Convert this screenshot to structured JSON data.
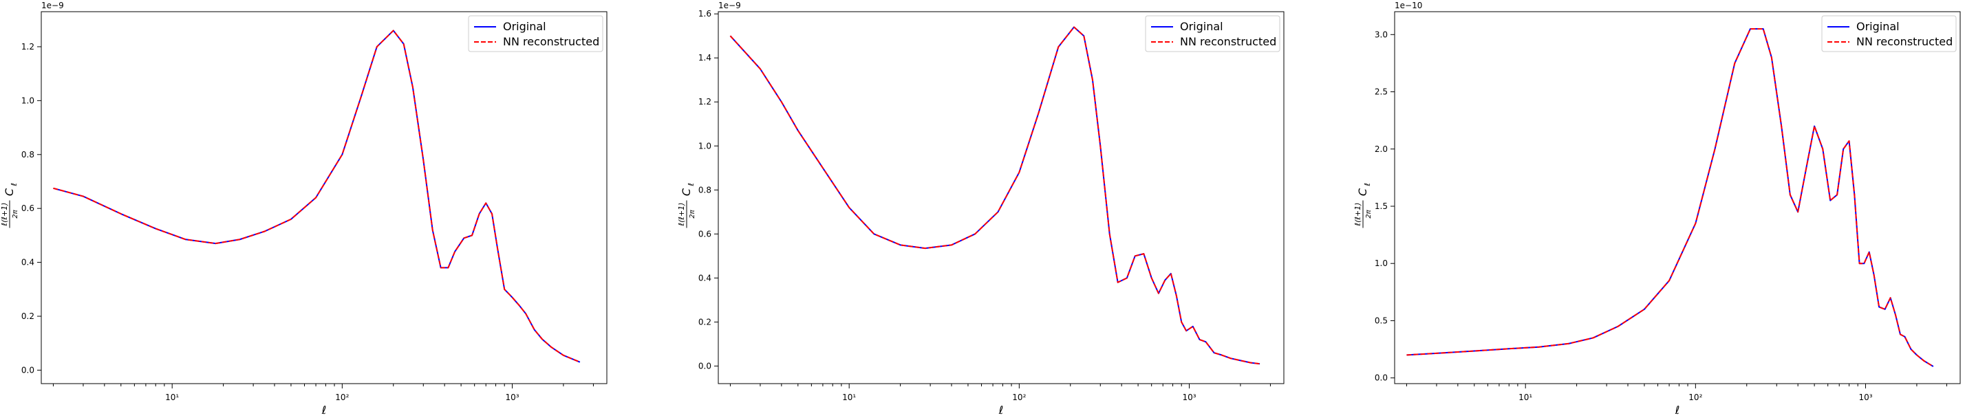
{
  "legend": {
    "original_label": "Original",
    "nn_label": "NN reconstructed"
  },
  "colors": {
    "original": "#0000ff",
    "nn": "#ff0000"
  },
  "axis_labels": {
    "xlabel": "ℓ",
    "ylabel_prefix": "ℓ(ℓ+1)",
    "ylabel_frac_den": "2π",
    "ylabel_suffix": "C",
    "ylabel_sub": "ℓ"
  },
  "chart_data": [
    {
      "type": "line",
      "xscale": "log",
      "xlim": [
        1.7,
        3600
      ],
      "ylim": [
        -0.05,
        1.33
      ],
      "offset_text": "1e−9",
      "xticks": [
        10,
        100,
        1000
      ],
      "xtick_labels": [
        "10¹",
        "10²",
        "10³"
      ],
      "yticks": [
        0.0,
        0.2,
        0.4,
        0.6,
        0.8,
        1.0,
        1.2
      ],
      "ytick_labels": [
        "0.0",
        "0.2",
        "0.4",
        "0.6",
        "0.8",
        "1.0",
        "1.2"
      ],
      "xlabel": "ℓ",
      "legend_position": "upper right",
      "series": [
        {
          "name": "Original",
          "style": "solid",
          "x": [
            2,
            3,
            5,
            8,
            12,
            18,
            25,
            35,
            50,
            70,
            100,
            130,
            160,
            200,
            230,
            260,
            300,
            340,
            380,
            420,
            460,
            520,
            580,
            640,
            700,
            760,
            820,
            900,
            1000,
            1100,
            1200,
            1350,
            1500,
            1700,
            2000,
            2500
          ],
          "y": [
            0.675,
            0.645,
            0.58,
            0.525,
            0.485,
            0.47,
            0.485,
            0.515,
            0.56,
            0.64,
            0.8,
            1.02,
            1.2,
            1.26,
            1.21,
            1.05,
            0.78,
            0.52,
            0.38,
            0.38,
            0.44,
            0.49,
            0.5,
            0.58,
            0.62,
            0.58,
            0.45,
            0.3,
            0.27,
            0.24,
            0.21,
            0.15,
            0.115,
            0.085,
            0.055,
            0.03
          ]
        },
        {
          "name": "NN reconstructed",
          "style": "dashed",
          "x": [
            2,
            3,
            5,
            8,
            12,
            18,
            25,
            35,
            50,
            70,
            100,
            130,
            160,
            200,
            230,
            260,
            300,
            340,
            380,
            420,
            460,
            520,
            580,
            640,
            700,
            760,
            820,
            900,
            1000,
            1100,
            1200,
            1350,
            1500,
            1700,
            2000,
            2500
          ],
          "y": [
            0.675,
            0.645,
            0.58,
            0.525,
            0.485,
            0.47,
            0.485,
            0.515,
            0.56,
            0.64,
            0.8,
            1.02,
            1.2,
            1.26,
            1.21,
            1.05,
            0.78,
            0.52,
            0.38,
            0.38,
            0.44,
            0.49,
            0.5,
            0.58,
            0.62,
            0.58,
            0.45,
            0.3,
            0.27,
            0.24,
            0.21,
            0.15,
            0.115,
            0.085,
            0.055,
            0.03
          ]
        }
      ]
    },
    {
      "type": "line",
      "xscale": "log",
      "xlim": [
        1.7,
        3600
      ],
      "ylim": [
        -0.08,
        1.61
      ],
      "offset_text": "1e−9",
      "xticks": [
        10,
        100,
        1000
      ],
      "xtick_labels": [
        "10¹",
        "10²",
        "10³"
      ],
      "yticks": [
        0.0,
        0.2,
        0.4,
        0.6,
        0.8,
        1.0,
        1.2,
        1.4,
        1.6
      ],
      "ytick_labels": [
        "0.0",
        "0.2",
        "0.4",
        "0.6",
        "0.8",
        "1.0",
        "1.2",
        "1.4",
        "1.6"
      ],
      "xlabel": "ℓ",
      "legend_position": "upper right",
      "series": [
        {
          "name": "Original",
          "style": "solid",
          "x": [
            2,
            3,
            4,
            5,
            7,
            10,
            14,
            20,
            28,
            40,
            55,
            75,
            100,
            130,
            170,
            210,
            240,
            270,
            300,
            340,
            380,
            430,
            480,
            540,
            600,
            660,
            720,
            780,
            840,
            900,
            960,
            1050,
            1150,
            1250,
            1400,
            1550,
            1750,
            2000,
            2300,
            2600
          ],
          "y": [
            1.5,
            1.35,
            1.2,
            1.07,
            0.9,
            0.72,
            0.6,
            0.55,
            0.535,
            0.55,
            0.6,
            0.7,
            0.88,
            1.15,
            1.45,
            1.54,
            1.5,
            1.3,
            1.0,
            0.6,
            0.38,
            0.4,
            0.5,
            0.51,
            0.4,
            0.33,
            0.39,
            0.42,
            0.32,
            0.2,
            0.16,
            0.18,
            0.12,
            0.11,
            0.06,
            0.05,
            0.035,
            0.025,
            0.015,
            0.01
          ]
        },
        {
          "name": "NN reconstructed",
          "style": "dashed",
          "x": [
            2,
            3,
            4,
            5,
            7,
            10,
            14,
            20,
            28,
            40,
            55,
            75,
            100,
            130,
            170,
            210,
            240,
            270,
            300,
            340,
            380,
            430,
            480,
            540,
            600,
            660,
            720,
            780,
            840,
            900,
            960,
            1050,
            1150,
            1250,
            1400,
            1550,
            1750,
            2000,
            2300,
            2600
          ],
          "y": [
            1.5,
            1.35,
            1.2,
            1.07,
            0.9,
            0.72,
            0.6,
            0.55,
            0.535,
            0.55,
            0.6,
            0.7,
            0.88,
            1.15,
            1.45,
            1.54,
            1.5,
            1.3,
            1.0,
            0.6,
            0.38,
            0.4,
            0.5,
            0.51,
            0.4,
            0.33,
            0.39,
            0.42,
            0.32,
            0.2,
            0.16,
            0.18,
            0.12,
            0.11,
            0.06,
            0.05,
            0.035,
            0.025,
            0.015,
            0.01
          ]
        }
      ]
    },
    {
      "type": "line",
      "xscale": "log",
      "xlim": [
        1.7,
        3600
      ],
      "ylim": [
        -0.05,
        3.2
      ],
      "offset_text": "1e−10",
      "xticks": [
        10,
        100,
        1000
      ],
      "xtick_labels": [
        "10¹",
        "10²",
        "10³"
      ],
      "yticks": [
        0.0,
        0.5,
        1.0,
        1.5,
        2.0,
        2.5,
        3.0
      ],
      "ytick_labels": [
        "0.0",
        "0.5",
        "1.0",
        "1.5",
        "2.0",
        "2.5",
        "3.0"
      ],
      "xlabel": "ℓ",
      "legend_position": "upper right",
      "series": [
        {
          "name": "Original",
          "style": "solid",
          "x": [
            2,
            3,
            5,
            8,
            12,
            18,
            25,
            35,
            50,
            70,
            100,
            130,
            170,
            210,
            250,
            280,
            320,
            360,
            400,
            450,
            500,
            560,
            620,
            680,
            740,
            800,
            860,
            920,
            980,
            1050,
            1120,
            1200,
            1300,
            1400,
            1500,
            1600,
            1700,
            1850,
            2000,
            2200,
            2500
          ],
          "y": [
            0.2,
            0.215,
            0.235,
            0.255,
            0.27,
            0.3,
            0.35,
            0.45,
            0.6,
            0.85,
            1.35,
            2.0,
            2.75,
            3.05,
            3.05,
            2.8,
            2.2,
            1.6,
            1.45,
            1.85,
            2.2,
            2.0,
            1.55,
            1.6,
            2.0,
            2.07,
            1.6,
            1.0,
            1.0,
            1.1,
            0.9,
            0.62,
            0.6,
            0.7,
            0.55,
            0.38,
            0.36,
            0.25,
            0.2,
            0.15,
            0.1
          ]
        },
        {
          "name": "NN reconstructed",
          "style": "dashed",
          "x": [
            2,
            3,
            5,
            8,
            12,
            18,
            25,
            35,
            50,
            70,
            100,
            130,
            170,
            210,
            250,
            280,
            320,
            360,
            400,
            450,
            500,
            560,
            620,
            680,
            740,
            800,
            860,
            920,
            980,
            1050,
            1120,
            1200,
            1300,
            1400,
            1500,
            1600,
            1700,
            1850,
            2000,
            2200,
            2500
          ],
          "y": [
            0.2,
            0.215,
            0.235,
            0.255,
            0.27,
            0.3,
            0.35,
            0.45,
            0.6,
            0.85,
            1.35,
            2.0,
            2.75,
            3.05,
            3.05,
            2.8,
            2.2,
            1.6,
            1.45,
            1.85,
            2.2,
            2.0,
            1.55,
            1.6,
            2.0,
            2.07,
            1.6,
            1.0,
            1.0,
            1.1,
            0.9,
            0.62,
            0.6,
            0.7,
            0.55,
            0.38,
            0.36,
            0.25,
            0.2,
            0.15,
            0.1
          ]
        }
      ]
    }
  ]
}
